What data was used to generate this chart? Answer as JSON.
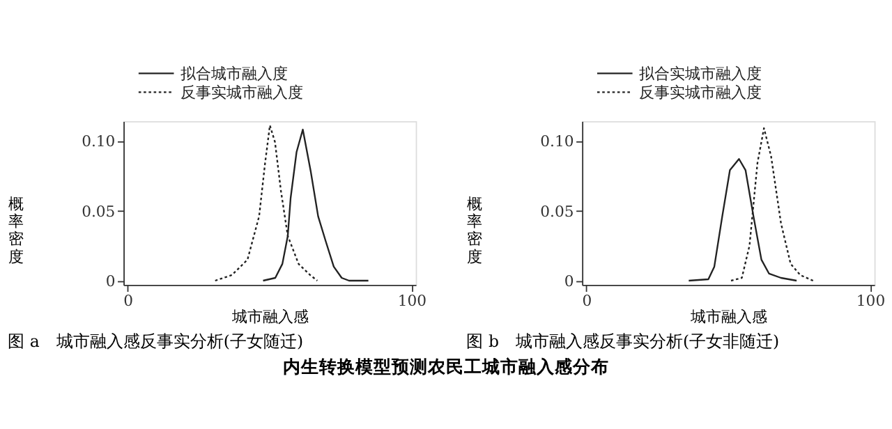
{
  "chart_data": [
    {
      "type": "line",
      "title": "图 a　城市融入感反事实分析(子女随迁)",
      "xlabel": "城市融入感",
      "ylabel": "概率密度",
      "legend": "top",
      "grid": false,
      "marker": "none",
      "xlim": [
        -1.5,
        101.5
      ],
      "xticks": [
        0,
        100
      ],
      "ylim": [
        -0.003,
        0.114
      ],
      "yticks": [
        0,
        0.05,
        {
          "value": 0.1,
          "label": "0.10"
        }
      ],
      "series": [
        {
          "name": "拟合城市融入度",
          "color": "#222222",
          "line_style": "solid",
          "x": [
            47.7,
            52,
            54.5,
            56.4,
            57.4,
            59.5,
            61.7,
            64.5,
            67.1,
            69.8,
            72.6,
            75.4,
            78,
            84.8
          ],
          "values": [
            0,
            0.002,
            0.012,
            0.032,
            0.059,
            0.092,
            0.108,
            0.078,
            0.046,
            0.028,
            0.01,
            0.002,
            0,
            0
          ]
        },
        {
          "name": "反事实城市融入度",
          "color": "#222222",
          "line_style": "dotted",
          "x": [
            30.8,
            36.7,
            42.2,
            46.3,
            48.4,
            50.1,
            51.9,
            54.0,
            56.4,
            60.2,
            64.3,
            66.8
          ],
          "values": [
            0,
            0.004,
            0.015,
            0.046,
            0.084,
            0.111,
            0.099,
            0.064,
            0.032,
            0.012,
            0.004,
            0
          ]
        }
      ],
      "annotations": [
        "内生转换模型预测农民工城市融入感分布"
      ]
    },
    {
      "type": "line",
      "title": "图 b　城市融入感反事实分析(子女非随迁)",
      "xlabel": "城市融入感",
      "ylabel": "概率密度",
      "legend": "top",
      "grid": false,
      "marker": "none",
      "xlim": [
        -1.5,
        101.5
      ],
      "xticks": [
        0,
        100
      ],
      "ylim": [
        -0.003,
        0.114
      ],
      "yticks": [
        0,
        0.05,
        {
          "value": 0.1,
          "label": "0.10"
        }
      ],
      "series": [
        {
          "name": "拟合实城市融入度",
          "color": "#222222",
          "line_style": "solid",
          "x": [
            36.1,
            43.0,
            45.1,
            47.9,
            50.6,
            53.8,
            56.1,
            58.9,
            61.7,
            64.4,
            68.6,
            74.1
          ],
          "values": [
            0,
            0.001,
            0.01,
            0.046,
            0.079,
            0.087,
            0.079,
            0.046,
            0.015,
            0.005,
            0.002,
            0
          ]
        },
        {
          "name": "反事实城市融入度",
          "color": "#222222",
          "line_style": "dotted",
          "x": [
            51.0,
            54.8,
            57.5,
            60.3,
            62.6,
            65.1,
            68.6,
            72.0,
            75.4,
            79.9
          ],
          "values": [
            0,
            0.002,
            0.025,
            0.084,
            0.109,
            0.089,
            0.041,
            0.012,
            0.004,
            0
          ]
        }
      ]
    }
  ]
}
